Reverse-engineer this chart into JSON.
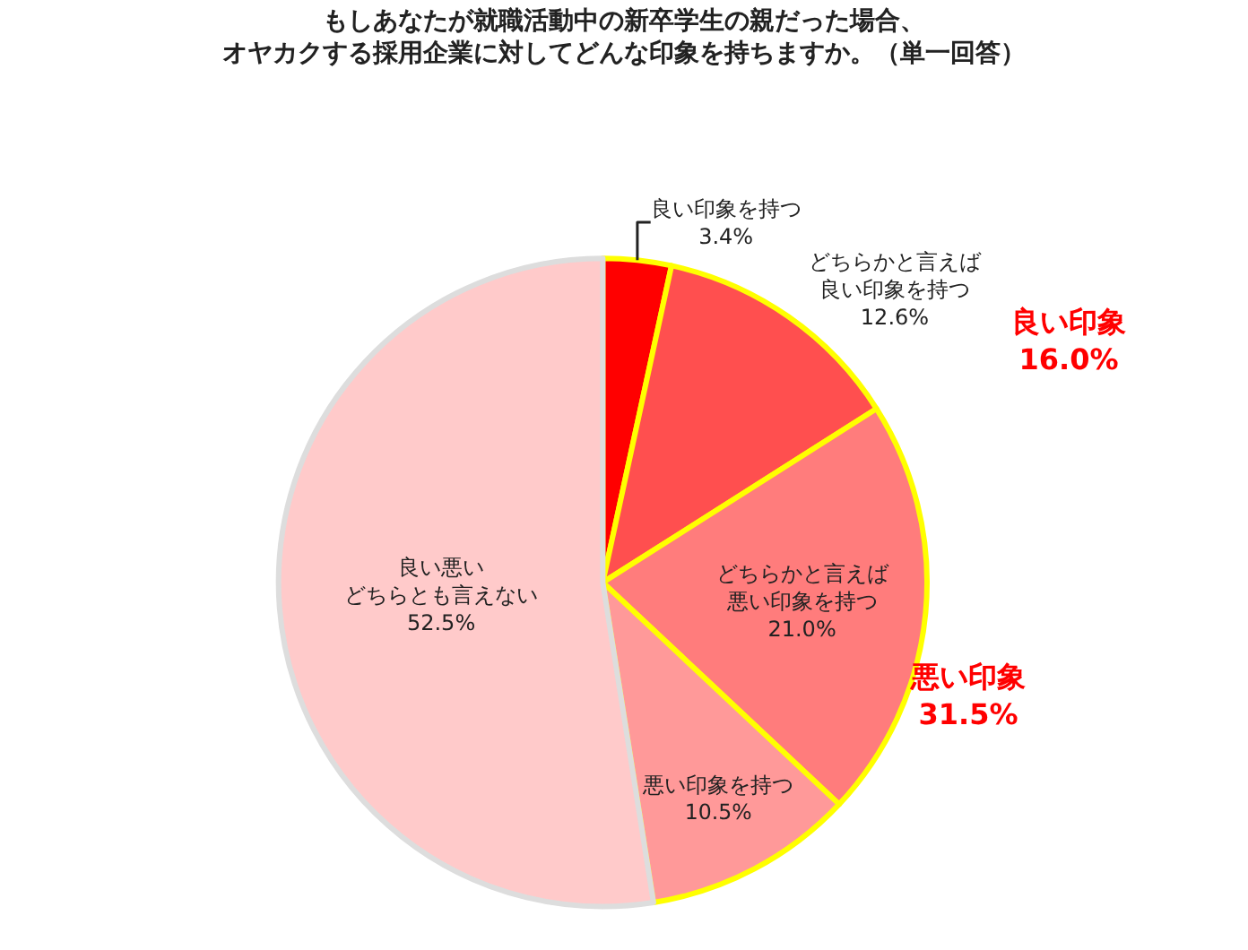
{
  "chart_data": {
    "type": "pie",
    "title": "もしあなたが就職活動中の新卒学生の親だった場合、",
    "subtitle": "オヤカクする採用企業に対してどんな印象を持ちますか。（単一回答）",
    "categories": [
      "良い印象を持つ",
      "どちらかと言えば良い印象を持つ",
      "どちらかと言えば悪い印象を持つ",
      "悪い印象を持つ",
      "良い悪いどちらとも言えない"
    ],
    "values": [
      3.4,
      12.6,
      21.0,
      10.5,
      52.5
    ],
    "colors": [
      "#ff0000",
      "#ff4f4f",
      "#ff7c7c",
      "#ff9999",
      "#ffcaca"
    ],
    "value_labels": [
      "3.4%",
      "12.6%",
      "21.0%",
      "10.5%",
      "52.5%"
    ],
    "annotations": [
      "良い印象\n16.0%",
      "悪い印象\n31.5%"
    ],
    "legend": false
  }
}
